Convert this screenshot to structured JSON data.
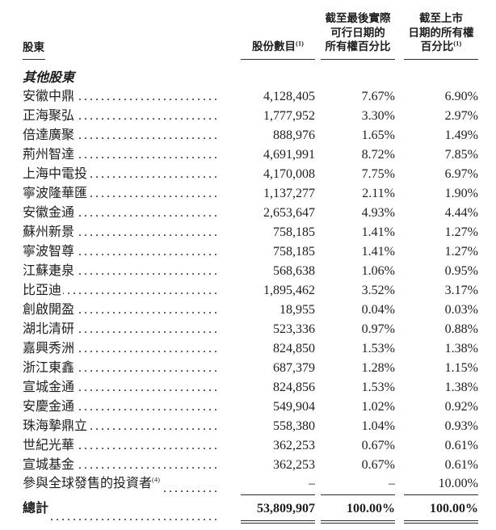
{
  "table": {
    "header": {
      "shareholder": "股東",
      "shares_label": "股份數目",
      "shares_sup": "(1)",
      "pct_practicable_lines": [
        "截至最後實際",
        "可行日期的",
        "所有權百分比"
      ],
      "pct_listing_lines": [
        "截至上市",
        "日期的所有權",
        "百分比"
      ],
      "pct_listing_sup": "(1)"
    },
    "section_label": "其他股東",
    "rows": [
      {
        "name": "安徽中鼎",
        "shares": "4,128,405",
        "pct_practicable": "7.67%",
        "pct_listing": "6.90%"
      },
      {
        "name": "正海聚弘",
        "shares": "1,777,952",
        "pct_practicable": "3.30%",
        "pct_listing": "2.97%"
      },
      {
        "name": "倍達廣聚",
        "shares": "888,976",
        "pct_practicable": "1.65%",
        "pct_listing": "1.49%"
      },
      {
        "name": "荊州智達",
        "shares": "4,691,991",
        "pct_practicable": "8.72%",
        "pct_listing": "7.85%"
      },
      {
        "name": "上海中電投",
        "shares": "4,170,008",
        "pct_practicable": "7.75%",
        "pct_listing": "6.97%"
      },
      {
        "name": "寧波隆華匯",
        "shares": "1,137,277",
        "pct_practicable": "2.11%",
        "pct_listing": "1.90%"
      },
      {
        "name": "安徽金通",
        "shares": "2,653,647",
        "pct_practicable": "4.93%",
        "pct_listing": "4.44%"
      },
      {
        "name": "蘇州新景",
        "shares": "758,185",
        "pct_practicable": "1.41%",
        "pct_listing": "1.27%"
      },
      {
        "name": "寧波智尊",
        "shares": "758,185",
        "pct_practicable": "1.41%",
        "pct_listing": "1.27%"
      },
      {
        "name": "江蘇疌泉",
        "shares": "568,638",
        "pct_practicable": "1.06%",
        "pct_listing": "0.95%"
      },
      {
        "name": "比亞迪",
        "shares": "1,895,462",
        "pct_practicable": "3.52%",
        "pct_listing": "3.17%"
      },
      {
        "name": "創啟開盈",
        "shares": "18,955",
        "pct_practicable": "0.04%",
        "pct_listing": "0.03%"
      },
      {
        "name": "湖北清研",
        "shares": "523,336",
        "pct_practicable": "0.97%",
        "pct_listing": "0.88%"
      },
      {
        "name": "嘉興秀洲",
        "shares": "824,850",
        "pct_practicable": "1.53%",
        "pct_listing": "1.38%"
      },
      {
        "name": "浙江東鑫",
        "shares": "687,379",
        "pct_practicable": "1.28%",
        "pct_listing": "1.15%"
      },
      {
        "name": "宣城金通",
        "shares": "824,856",
        "pct_practicable": "1.53%",
        "pct_listing": "1.38%"
      },
      {
        "name": "安慶金通",
        "shares": "549,904",
        "pct_practicable": "1.02%",
        "pct_listing": "0.92%"
      },
      {
        "name": "珠海摯鼎立",
        "shares": "558,380",
        "pct_practicable": "1.04%",
        "pct_listing": "0.93%"
      },
      {
        "name": "世紀光華",
        "shares": "362,253",
        "pct_practicable": "0.67%",
        "pct_listing": "0.61%"
      },
      {
        "name": "宣城基金",
        "shares": "362,253",
        "pct_practicable": "0.67%",
        "pct_listing": "0.61%"
      }
    ],
    "investors_row": {
      "name": "參與全球發售的投資者",
      "sup": "(4)",
      "shares": "–",
      "pct_practicable": "–",
      "pct_listing": "10.00%"
    },
    "total_row": {
      "label": "總計",
      "shares": "53,809,907",
      "pct_practicable": "100.00%",
      "pct_listing": "100.00%"
    }
  }
}
